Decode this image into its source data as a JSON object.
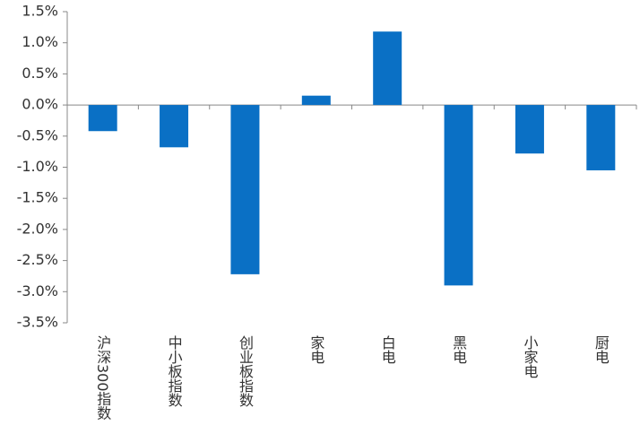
{
  "chart_data": {
    "type": "bar",
    "categories": [
      "沪深300指数",
      "中小板指数",
      "创业板指数",
      "家电",
      "白电",
      "黑电",
      "小家电",
      "厨电"
    ],
    "values": [
      -0.42,
      -0.68,
      -2.72,
      0.15,
      1.18,
      -2.9,
      -0.78,
      -1.05
    ],
    "color": "#0a70c5",
    "ylim": [
      -3.5,
      1.5
    ],
    "yticks": [
      {
        "value": -3.5,
        "label": "-3.5%"
      },
      {
        "value": -3.0,
        "label": "-3.0%"
      },
      {
        "value": -2.5,
        "label": "-2.5%"
      },
      {
        "value": -2.0,
        "label": "-2.0%"
      },
      {
        "value": -1.5,
        "label": "-1.5%"
      },
      {
        "value": -1.0,
        "label": "-1.0%"
      },
      {
        "value": -0.5,
        "label": "-0.5%"
      },
      {
        "value": 0.0,
        "label": "0.0%"
      },
      {
        "value": 0.5,
        "label": "0.5%"
      },
      {
        "value": 1.0,
        "label": "1.0%"
      },
      {
        "value": 1.5,
        "label": "1.5%"
      }
    ],
    "grid": false
  }
}
